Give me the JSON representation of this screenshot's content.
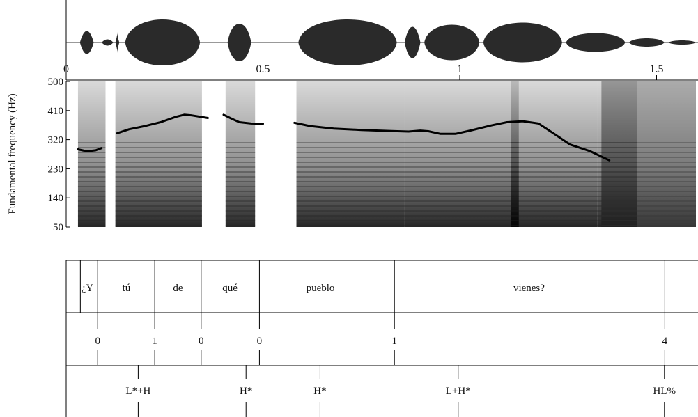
{
  "chart_data": {
    "type": "line",
    "title": "",
    "xlabel": "",
    "ylabel": "Fundamental frequency (Hz)",
    "xlim": [
      0,
      1.6
    ],
    "ylim": [
      50,
      500
    ],
    "x_ticks": [
      0,
      0.5,
      1,
      1.5
    ],
    "x_tick_labels": [
      "0",
      "0.5",
      "1",
      "1.5"
    ],
    "y_ticks": [
      50,
      140,
      230,
      320,
      410,
      500
    ],
    "y_tick_labels": [
      "50",
      "140",
      "230",
      "320",
      "410",
      "500"
    ],
    "series": [
      {
        "segments": [
          {
            "x": [
              0.03,
              0.045,
              0.06,
              0.075,
              0.09
            ],
            "y": [
              290,
              286,
              285,
              287,
              294
            ]
          },
          {
            "x": [
              0.13,
              0.16,
              0.2,
              0.24,
              0.28,
              0.3,
              0.32,
              0.36
            ],
            "y": [
              340,
              352,
              362,
              374,
              391,
              397,
              395,
              387
            ]
          },
          {
            "x": [
              0.4,
              0.42,
              0.44,
              0.47,
              0.5
            ],
            "y": [
              397,
              385,
              374,
              370,
              369
            ]
          },
          {
            "x": [
              0.58,
              0.62,
              0.68,
              0.75,
              0.82,
              0.87,
              0.9,
              0.92,
              0.95,
              0.99,
              1.03,
              1.08,
              1.12,
              1.16,
              1.2,
              1.24,
              1.28,
              1.33,
              1.38
            ],
            "y": [
              372,
              362,
              354,
              350,
              347,
              345,
              348,
              346,
              338,
              338,
              349,
              364,
              374,
              377,
              370,
              338,
              305,
              285,
              256
            ]
          }
        ]
      }
    ],
    "tiers": {
      "words": {
        "labels": [
          "¿Y",
          "tú",
          "de",
          "qué",
          "pueblo",
          "vienes?"
        ],
        "centers": [
          0.054,
          0.153,
          0.284,
          0.416,
          0.646,
          1.176
        ],
        "boundaries": [
          0.036,
          0.08,
          0.225,
          0.343,
          0.491,
          0.834,
          1.521
        ]
      },
      "breaks": {
        "labels": [
          "0",
          "1",
          "0",
          "0",
          "1",
          "4"
        ],
        "x": [
          0.08,
          0.225,
          0.343,
          0.491,
          0.834,
          1.521
        ]
      },
      "tones": {
        "labels": [
          "L*+H",
          "H*",
          "H*",
          "L+H*",
          "HL%"
        ],
        "x": [
          0.183,
          0.457,
          0.645,
          0.996,
          1.52
        ]
      }
    },
    "grid": false,
    "legend": "none"
  }
}
